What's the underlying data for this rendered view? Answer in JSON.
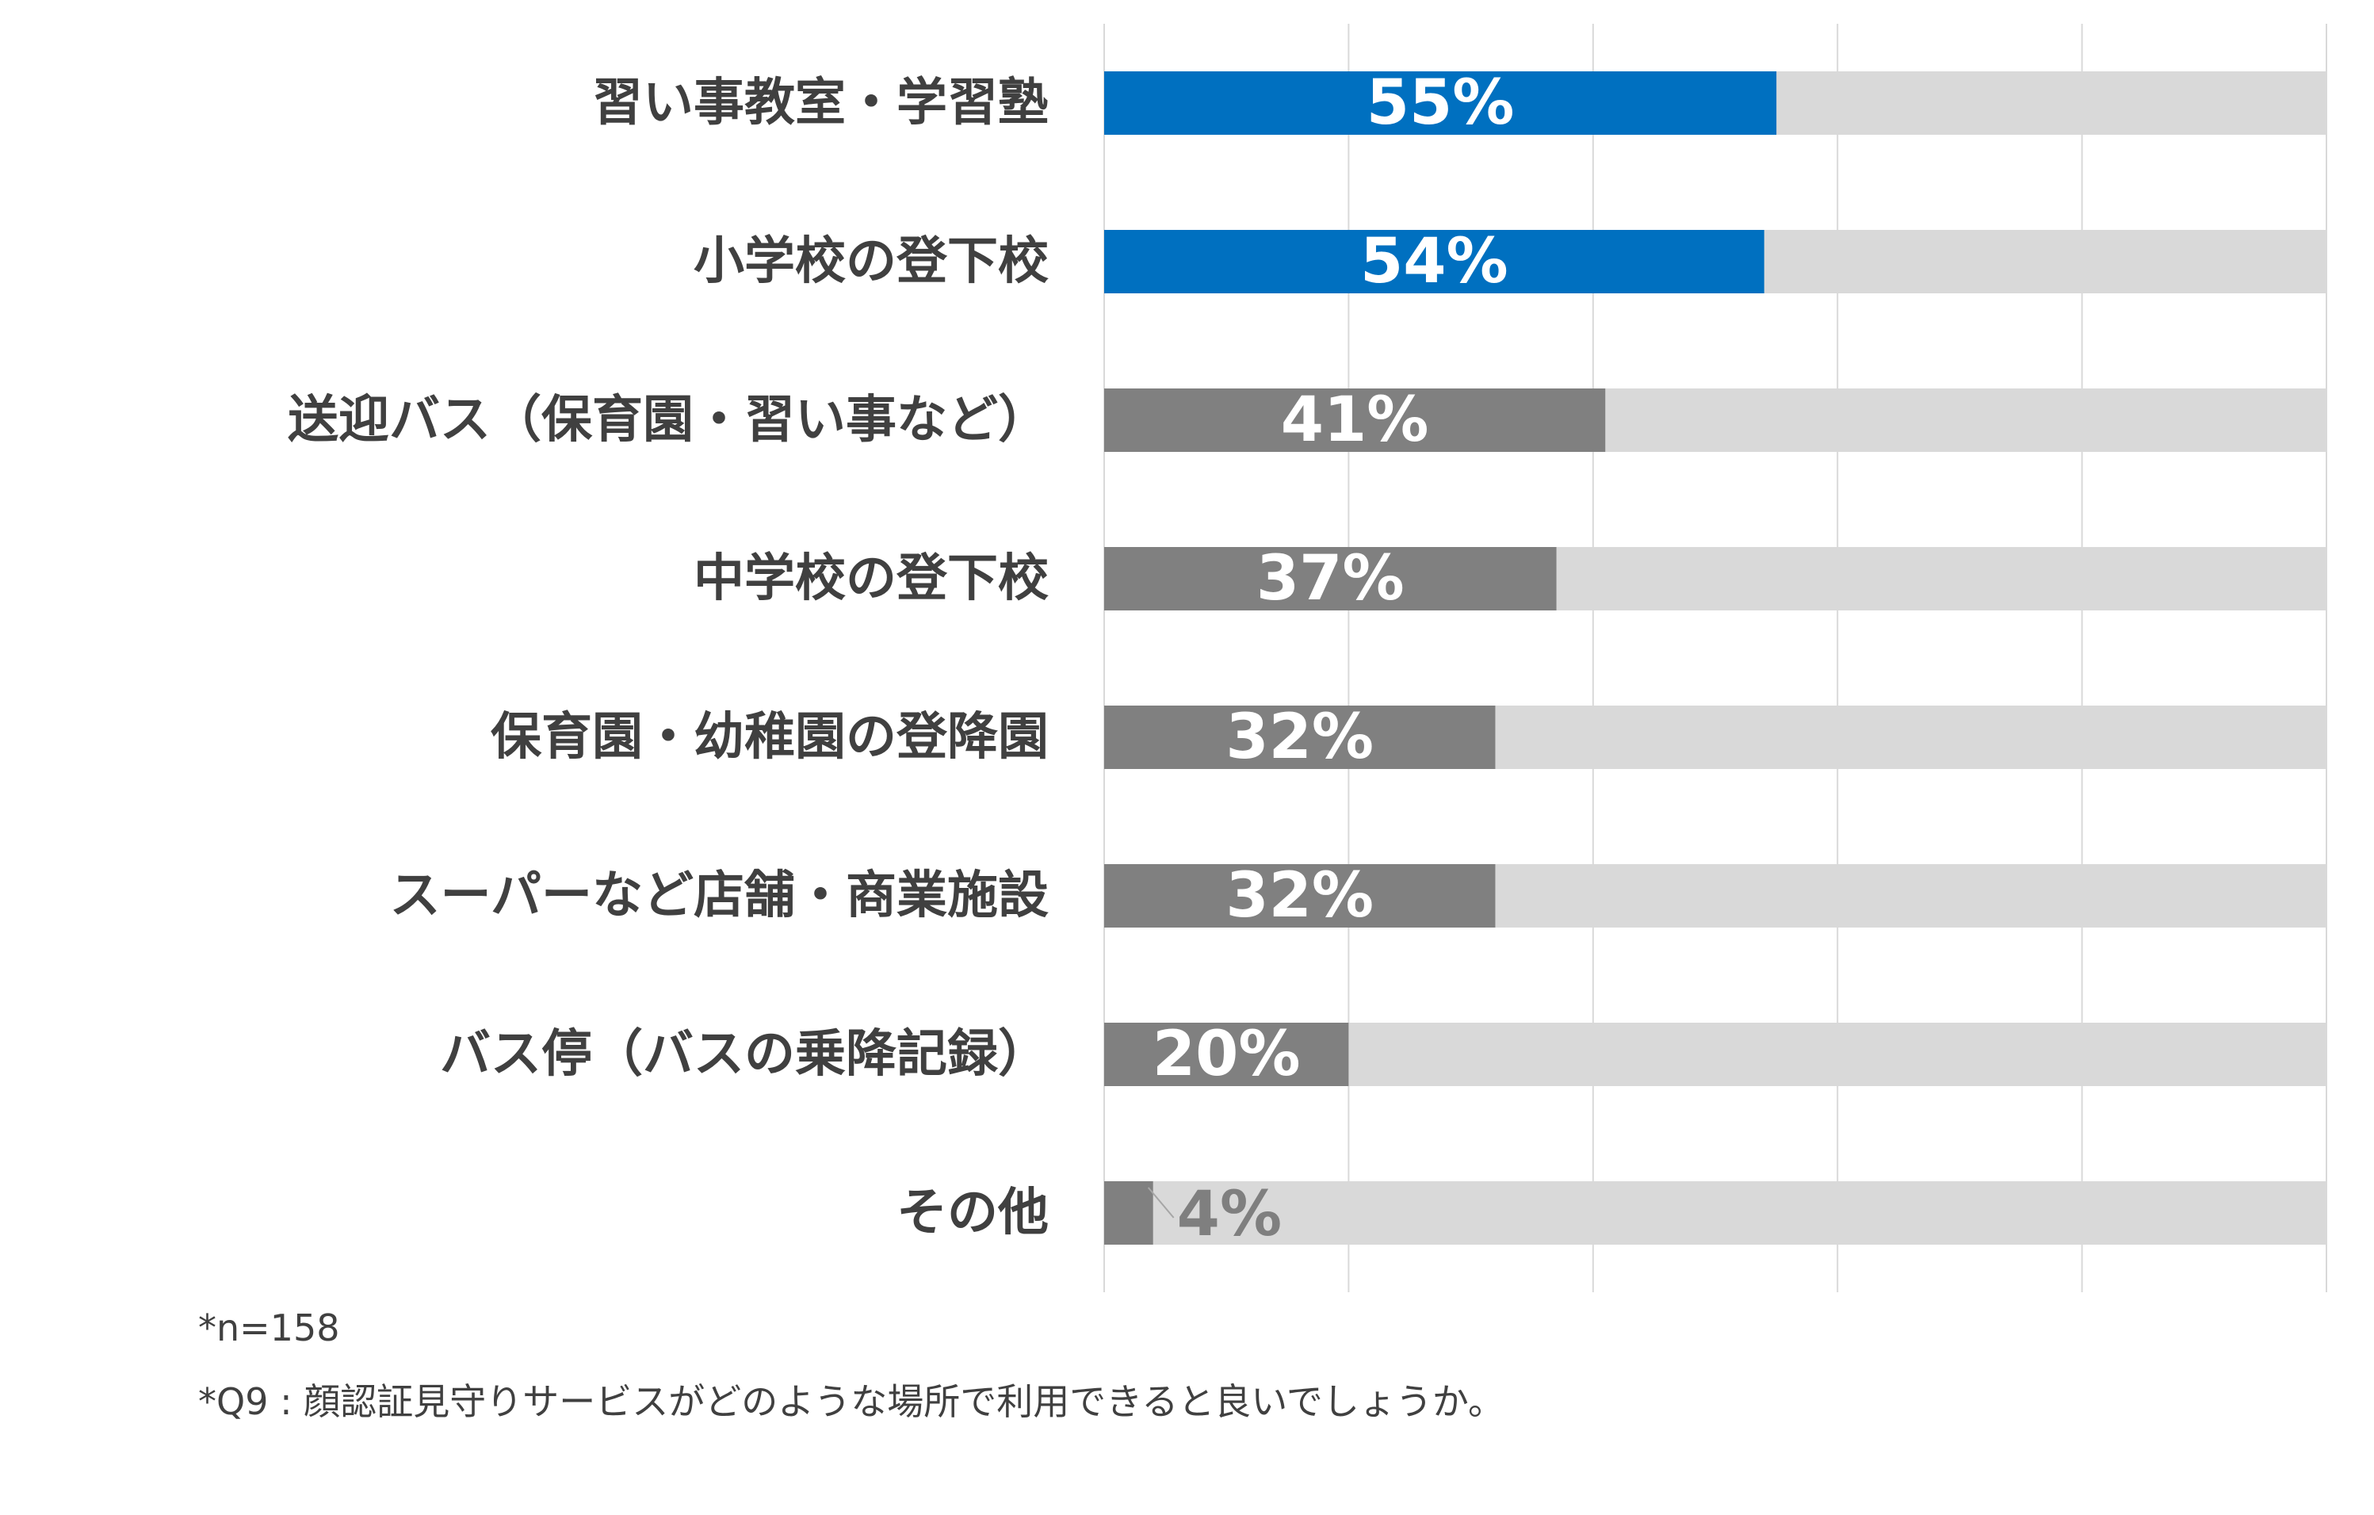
{
  "chart_data": {
    "type": "bar",
    "orientation": "horizontal",
    "categories": [
      "習い事教室・学習塾",
      "小学校の登下校",
      "送迎バス（保育園・習い事など）",
      "中学校の登下校",
      "保育園・幼稚園の登降園",
      "スーパーなど店舗・商業施設",
      "バス停（バスの乗降記録）",
      "その他"
    ],
    "values": [
      55,
      54,
      41,
      37,
      32,
      32,
      20,
      4
    ],
    "value_labels": [
      "55%",
      "54%",
      "41%",
      "37%",
      "32%",
      "32%",
      "20%",
      "4%"
    ],
    "xlim": [
      0,
      100
    ],
    "grid": true,
    "legend": "none",
    "colors": {
      "highlight": "#0070c0",
      "bar": "#808080",
      "track": "#d9d9d9",
      "grid": "#d9d9d9",
      "text": "#404040"
    },
    "highlighted": [
      0,
      1
    ]
  },
  "notes": {
    "sample": "*n=158",
    "question": "*Q9 : 顔認証見守りサービスがどのような場所で利用できると良いでしょうか。"
  }
}
